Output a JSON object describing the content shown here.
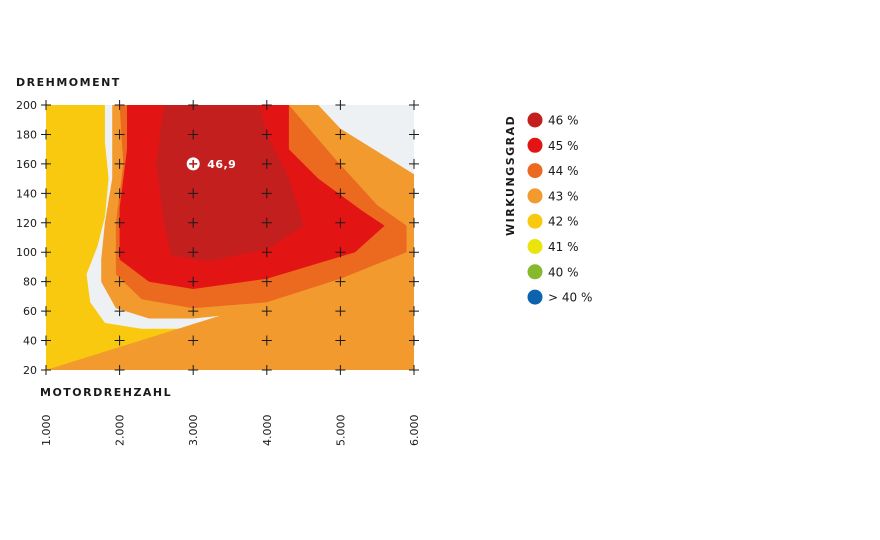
{
  "chart_data": {
    "type": "heatmap",
    "subtype": "contour",
    "ylabel": "DREHMOMENT",
    "xlabel": "MOTORDREHZAHL",
    "x_ticks": [
      "1.000",
      "2.000",
      "3.000",
      "4.000",
      "5.000",
      "6.000"
    ],
    "x_values": [
      1000,
      2000,
      3000,
      4000,
      5000,
      6000
    ],
    "y_ticks": [
      "200",
      "180",
      "160",
      "140",
      "120",
      "100",
      "80",
      "60",
      "40",
      "20"
    ],
    "y_values": [
      200,
      180,
      160,
      140,
      120,
      100,
      80,
      60,
      40,
      20
    ],
    "xlim": [
      1000,
      6000
    ],
    "ylim": [
      20,
      200
    ],
    "background_color": "#eef1f3",
    "legend_title": "WIRKUNGSGRAD",
    "legend_position": "right",
    "legend": [
      {
        "label": "46 %",
        "color": "#c41f1f"
      },
      {
        "label": "45 %",
        "color": "#e31414"
      },
      {
        "label": "44 %",
        "color": "#ec6a20"
      },
      {
        "label": "43 %",
        "color": "#f29a2e"
      },
      {
        "label": "42 %",
        "color": "#f8c90f"
      },
      {
        "label": "41 %",
        "color": "#eae40c"
      },
      {
        "label": "40 %",
        "color": "#86b92b"
      },
      {
        "label": "> 40 %",
        "color": "#0d63ae"
      }
    ],
    "regions": [
      {
        "level": "> 40 %",
        "color": "#0d63ae",
        "polygon": [
          [
            1000,
            20
          ],
          [
            6000,
            20
          ],
          [
            6000,
            59
          ],
          [
            5000,
            49
          ],
          [
            4000,
            35
          ],
          [
            3000,
            31
          ],
          [
            2300,
            30
          ],
          [
            1600,
            38
          ],
          [
            1300,
            54
          ],
          [
            1200,
            78
          ],
          [
            1300,
            100
          ],
          [
            1450,
            120
          ],
          [
            1500,
            142
          ],
          [
            1350,
            175
          ],
          [
            1200,
            160
          ],
          [
            1000,
            144
          ]
        ]
      },
      {
        "level": "40 %",
        "color": "#86b92b",
        "polygon": [
          [
            1000,
            20
          ],
          [
            6000,
            20
          ],
          [
            6000,
            65
          ],
          [
            5000,
            54
          ],
          [
            4000,
            40
          ],
          [
            3000,
            36
          ],
          [
            2300,
            35
          ],
          [
            1600,
            44
          ],
          [
            1350,
            58
          ],
          [
            1250,
            80
          ],
          [
            1400,
            100
          ],
          [
            1550,
            120
          ],
          [
            1600,
            140
          ],
          [
            1450,
            170
          ],
          [
            1350,
            200
          ],
          [
            1000,
            200
          ]
        ]
      },
      {
        "level": "41 %",
        "color": "#eae40c",
        "polygon": [
          [
            1000,
            20
          ],
          [
            6000,
            20
          ],
          [
            6000,
            76
          ],
          [
            5000,
            60
          ],
          [
            4000,
            46
          ],
          [
            3000,
            40
          ],
          [
            2200,
            40
          ],
          [
            1700,
            48
          ],
          [
            1500,
            62
          ],
          [
            1350,
            80
          ],
          [
            1500,
            100
          ],
          [
            1650,
            120
          ],
          [
            1700,
            140
          ],
          [
            1650,
            170
          ],
          [
            1550,
            200
          ],
          [
            1000,
            200
          ]
        ]
      },
      {
        "level": "42 %",
        "color": "#f8c90f",
        "polygon": [
          [
            1000,
            20
          ],
          [
            6000,
            20
          ],
          [
            6000,
            86
          ],
          [
            5000,
            70
          ],
          [
            4000,
            53
          ],
          [
            3000,
            48
          ],
          [
            2300,
            48
          ],
          [
            1800,
            52
          ],
          [
            1600,
            66
          ],
          [
            1550,
            85
          ],
          [
            1700,
            104
          ],
          [
            1800,
            124
          ],
          [
            1850,
            150
          ],
          [
            1800,
            175
          ],
          [
            1800,
            200
          ],
          [
            1000,
            200
          ]
        ]
      },
      {
        "level": "43 %",
        "color": "#f29a2e",
        "polygon": [
          [
            1000,
            20
          ],
          [
            6000,
            20
          ],
          [
            6000,
            153
          ],
          [
            5000,
            184
          ],
          [
            4700,
            200
          ],
          [
            1900,
            200
          ],
          [
            1900,
            150
          ],
          [
            1800,
            120
          ],
          [
            1750,
            95
          ],
          [
            1750,
            80
          ],
          [
            1950,
            62
          ],
          [
            2400,
            55
          ],
          [
            3000,
            55
          ],
          [
            4000,
            60
          ],
          [
            5000,
            76
          ],
          [
            6000,
            98
          ]
        ]
      },
      {
        "level": "44 %",
        "color": "#ec6a20",
        "polygon": [
          [
            2000,
            200
          ],
          [
            4300,
            200
          ],
          [
            4900,
            165
          ],
          [
            5500,
            132
          ],
          [
            5900,
            118
          ],
          [
            5900,
            100
          ],
          [
            5000,
            82
          ],
          [
            4000,
            66
          ],
          [
            3000,
            62
          ],
          [
            2300,
            68
          ],
          [
            1950,
            85
          ],
          [
            1950,
            120
          ],
          [
            2050,
            160
          ]
        ]
      },
      {
        "level": "45 %",
        "color": "#e31414",
        "polygon": [
          [
            2100,
            200
          ],
          [
            4300,
            200
          ],
          [
            4300,
            170
          ],
          [
            4700,
            150
          ],
          [
            5300,
            128
          ],
          [
            5600,
            118
          ],
          [
            5200,
            100
          ],
          [
            4000,
            82
          ],
          [
            3000,
            75
          ],
          [
            2400,
            80
          ],
          [
            2000,
            95
          ],
          [
            2000,
            130
          ],
          [
            2100,
            170
          ]
        ]
      },
      {
        "level": "46 %",
        "color": "#c41f1f",
        "polygon": [
          [
            2600,
            200
          ],
          [
            3900,
            200
          ],
          [
            4000,
            180
          ],
          [
            4300,
            150
          ],
          [
            4500,
            118
          ],
          [
            4000,
            102
          ],
          [
            3200,
            94
          ],
          [
            2700,
            98
          ],
          [
            2600,
            120
          ],
          [
            2500,
            160
          ]
        ]
      }
    ],
    "annotations": [
      {
        "x": 3000,
        "y": 160,
        "label": "46,9"
      }
    ]
  }
}
